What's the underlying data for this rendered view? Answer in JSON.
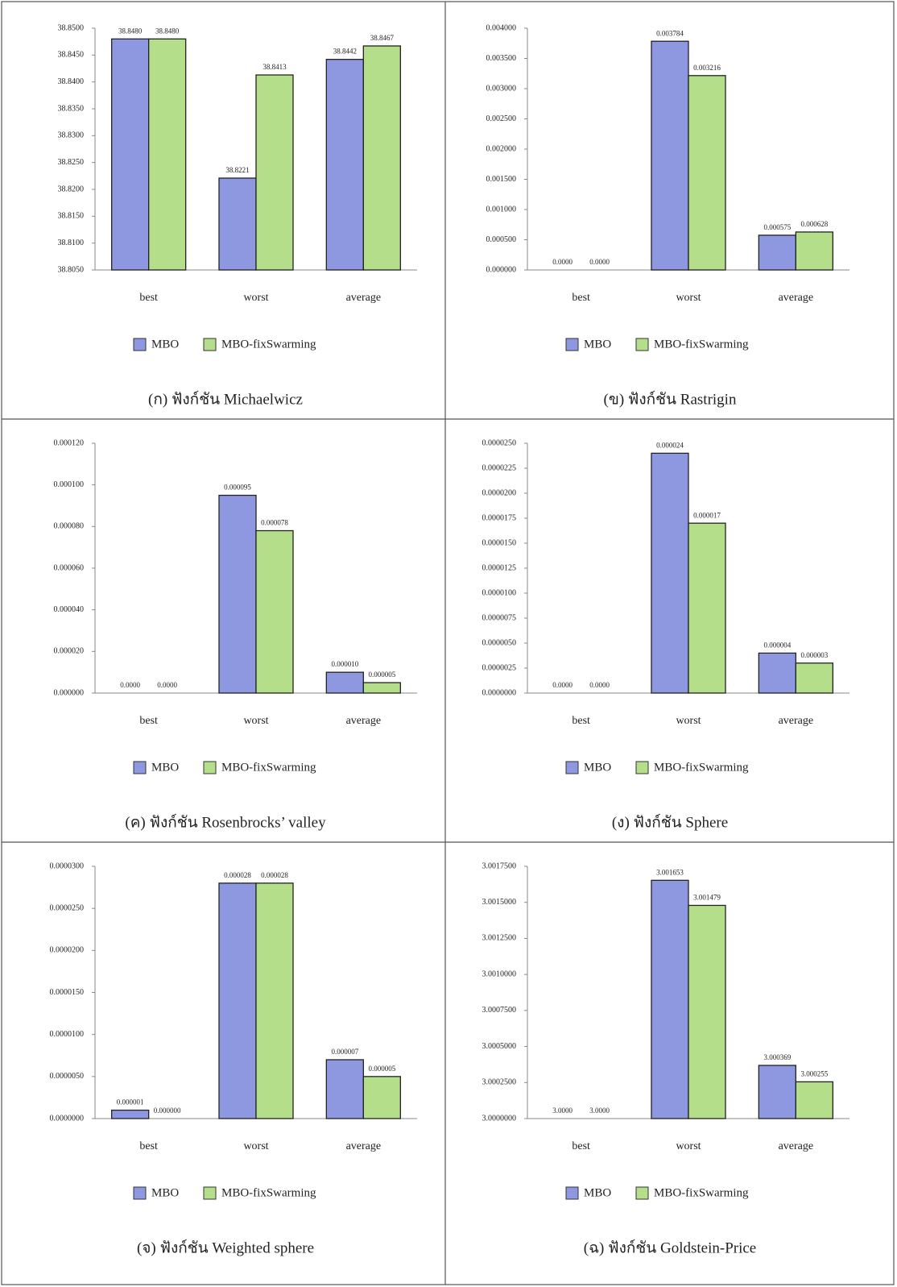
{
  "chart_data": [
    {
      "type": "bar",
      "title": "(ก) ฟังก์ชัน Michaelwicz",
      "categories": [
        "best",
        "worst",
        "average"
      ],
      "series": [
        {
          "name": "MBO",
          "color": "#8e98e0",
          "values": [
            38.848,
            38.8221,
            38.8442
          ],
          "value_labels": [
            "38.8480",
            "38.8221",
            "38.8442"
          ]
        },
        {
          "name": "MBO-fixSwarming",
          "color": "#b5de8a",
          "values": [
            38.848,
            38.8413,
            38.8467
          ],
          "value_labels": [
            "38.8480",
            "38.8413",
            "38.8467"
          ]
        }
      ],
      "ylim": [
        38.805,
        38.85
      ],
      "yticks": [
        {
          "value": 38.805,
          "label": "38.8050"
        },
        {
          "value": 38.81,
          "label": "38.8100"
        },
        {
          "value": 38.815,
          "label": "38.8150"
        },
        {
          "value": 38.82,
          "label": "38.8200"
        },
        {
          "value": 38.825,
          "label": "38.8250"
        },
        {
          "value": 38.83,
          "label": "38.8300"
        },
        {
          "value": 38.835,
          "label": "38.8350"
        },
        {
          "value": 38.84,
          "label": "38.8400"
        },
        {
          "value": 38.845,
          "label": "38.8450"
        },
        {
          "value": 38.85,
          "label": "38.8500"
        }
      ]
    },
    {
      "type": "bar",
      "title": "(ข) ฟังก์ชัน Rastrigin",
      "categories": [
        "best",
        "worst",
        "average"
      ],
      "series": [
        {
          "name": "MBO",
          "color": "#8e98e0",
          "values": [
            0,
            0.003784,
            0.000575
          ],
          "value_labels": [
            "0.0000",
            "0.003784",
            "0.000575"
          ]
        },
        {
          "name": "MBO-fixSwarming",
          "color": "#b5de8a",
          "values": [
            0,
            0.003216,
            0.000628
          ],
          "value_labels": [
            "0.0000",
            "0.003216",
            "0.000628"
          ]
        }
      ],
      "ylim": [
        0,
        0.004
      ],
      "yticks": [
        {
          "value": 0,
          "label": "0.000000"
        },
        {
          "value": 0.0005,
          "label": "0.000500"
        },
        {
          "value": 0.001,
          "label": "0.001000"
        },
        {
          "value": 0.0015,
          "label": "0.001500"
        },
        {
          "value": 0.002,
          "label": "0.002000"
        },
        {
          "value": 0.0025,
          "label": "0.002500"
        },
        {
          "value": 0.003,
          "label": "0.003000"
        },
        {
          "value": 0.0035,
          "label": "0.003500"
        },
        {
          "value": 0.004,
          "label": "0.004000"
        }
      ]
    },
    {
      "type": "bar",
      "title": "(ค) ฟังก์ชัน Rosenbrocks’ valley",
      "categories": [
        "best",
        "worst",
        "average"
      ],
      "series": [
        {
          "name": "MBO",
          "color": "#8e98e0",
          "values": [
            0,
            9.5e-05,
            1e-05
          ],
          "value_labels": [
            "0.0000",
            "0.000095",
            "0.000010"
          ]
        },
        {
          "name": "MBO-fixSwarming",
          "color": "#b5de8a",
          "values": [
            0,
            7.8e-05,
            5e-06
          ],
          "value_labels": [
            "0.0000",
            "0.000078",
            "0.000005"
          ]
        }
      ],
      "ylim": [
        0,
        0.00012
      ],
      "yticks": [
        {
          "value": 0,
          "label": "0.000000"
        },
        {
          "value": 2e-05,
          "label": "0.000020"
        },
        {
          "value": 4e-05,
          "label": "0.000040"
        },
        {
          "value": 6e-05,
          "label": "0.000060"
        },
        {
          "value": 8e-05,
          "label": "0.000080"
        },
        {
          "value": 0.0001,
          "label": "0.000100"
        },
        {
          "value": 0.00012,
          "label": "0.000120"
        }
      ]
    },
    {
      "type": "bar",
      "title": "(ง) ฟังก์ชัน Sphere",
      "categories": [
        "best",
        "worst",
        "average"
      ],
      "series": [
        {
          "name": "MBO",
          "color": "#8e98e0",
          "values": [
            0,
            2.4e-05,
            4e-06
          ],
          "value_labels": [
            "0.0000",
            "0.000024",
            "0.000004"
          ]
        },
        {
          "name": "MBO-fixSwarming",
          "color": "#b5de8a",
          "values": [
            0,
            1.7e-05,
            3e-06
          ],
          "value_labels": [
            "0.0000",
            "0.000017",
            "0.000003"
          ]
        }
      ],
      "ylim": [
        0,
        2.5e-05
      ],
      "yticks": [
        {
          "value": 0,
          "label": "0.0000000"
        },
        {
          "value": 2.5e-06,
          "label": "0.0000025"
        },
        {
          "value": 5e-06,
          "label": "0.0000050"
        },
        {
          "value": 7.5e-06,
          "label": "0.0000075"
        },
        {
          "value": 1e-05,
          "label": "0.0000100"
        },
        {
          "value": 1.25e-05,
          "label": "0.0000125"
        },
        {
          "value": 1.5e-05,
          "label": "0.0000150"
        },
        {
          "value": 1.75e-05,
          "label": "0.0000175"
        },
        {
          "value": 2e-05,
          "label": "0.0000200"
        },
        {
          "value": 2.25e-05,
          "label": "0.0000225"
        },
        {
          "value": 2.5e-05,
          "label": "0.0000250"
        }
      ]
    },
    {
      "type": "bar",
      "title": "(จ) ฟังก์ชัน Weighted sphere",
      "categories": [
        "best",
        "worst",
        "average"
      ],
      "series": [
        {
          "name": "MBO",
          "color": "#8e98e0",
          "values": [
            1e-06,
            2.8e-05,
            7e-06
          ],
          "value_labels": [
            "0.000001",
            "0.000028",
            "0.000007"
          ]
        },
        {
          "name": "MBO-fixSwarming",
          "color": "#b5de8a",
          "values": [
            0,
            2.8e-05,
            5e-06
          ],
          "value_labels": [
            "0.000000",
            "0.000028",
            "0.000005"
          ]
        }
      ],
      "ylim": [
        0,
        3e-05
      ],
      "yticks": [
        {
          "value": 0,
          "label": "0.0000000"
        },
        {
          "value": 5e-06,
          "label": "0.0000050"
        },
        {
          "value": 1e-05,
          "label": "0.0000100"
        },
        {
          "value": 1.5e-05,
          "label": "0.0000150"
        },
        {
          "value": 2e-05,
          "label": "0.0000200"
        },
        {
          "value": 2.5e-05,
          "label": "0.0000250"
        },
        {
          "value": 3e-05,
          "label": "0.0000300"
        }
      ]
    },
    {
      "type": "bar",
      "title": "(ฉ) ฟังก์ชัน Goldstein-Price",
      "categories": [
        "best",
        "worst",
        "average"
      ],
      "series": [
        {
          "name": "MBO",
          "color": "#8e98e0",
          "values": [
            3,
            3.001653,
            3.000369
          ],
          "value_labels": [
            "3.0000",
            "3.001653",
            "3.000369"
          ]
        },
        {
          "name": "MBO-fixSwarming",
          "color": "#b5de8a",
          "values": [
            3,
            3.001479,
            3.000255
          ],
          "value_labels": [
            "3.0000",
            "3.001479",
            "3.000255"
          ]
        }
      ],
      "ylim": [
        3,
        3.00175
      ],
      "yticks": [
        {
          "value": 3,
          "label": "3.0000000"
        },
        {
          "value": 3.00025,
          "label": "3.0002500"
        },
        {
          "value": 3.0005,
          "label": "3.0005000"
        },
        {
          "value": 3.00075,
          "label": "3.0007500"
        },
        {
          "value": 3.001,
          "label": "3.0010000"
        },
        {
          "value": 3.00125,
          "label": "3.0012500"
        },
        {
          "value": 3.0015,
          "label": "3.0015000"
        },
        {
          "value": 3.00175,
          "label": "3.0017500"
        }
      ]
    }
  ]
}
